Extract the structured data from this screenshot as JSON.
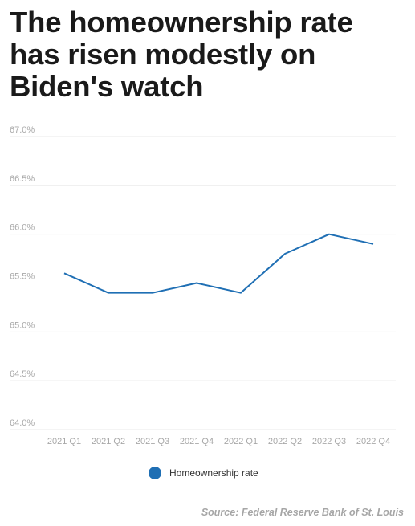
{
  "colors": {
    "series": "#1f6fb4",
    "grid": "#e8e8e8",
    "tick": "#a8a8a8",
    "title": "#1a1a1a"
  },
  "source": "Source: Federal Reserve Bank of St. Louis",
  "chart_data": {
    "type": "line",
    "title": "The homeownership rate has risen modestly on Biden's watch",
    "xlabel": "",
    "ylabel": "",
    "categories": [
      "2021 Q1",
      "2021 Q2",
      "2021 Q3",
      "2021 Q4",
      "2022 Q1",
      "2022 Q2",
      "2022 Q3",
      "2022 Q4"
    ],
    "series": [
      {
        "name": "Homeownership rate",
        "values": [
          65.6,
          65.4,
          65.4,
          65.5,
          65.4,
          65.8,
          66.0,
          65.9
        ]
      }
    ],
    "yticks": [
      "64.0%",
      "64.5%",
      "65.0%",
      "65.5%",
      "66.0%",
      "66.5%",
      "67.0%"
    ],
    "ylim": [
      64.0,
      67.0
    ],
    "grid": true,
    "legend": "bottom-center"
  }
}
